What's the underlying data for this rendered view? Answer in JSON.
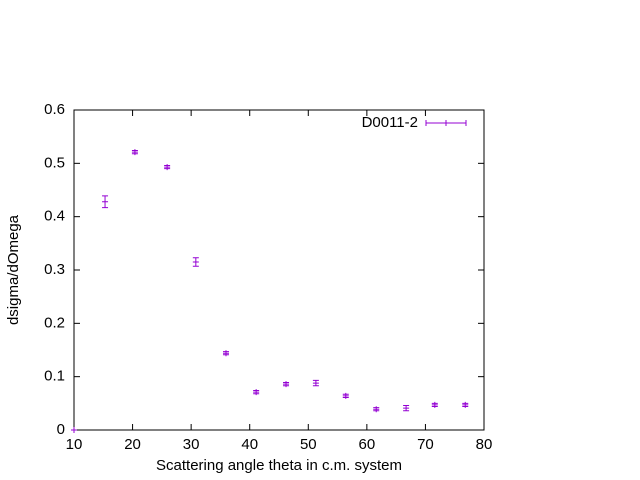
{
  "chart_data": {
    "type": "scatter",
    "xlabel": "Scattering angle theta in c.m. system",
    "ylabel": "dsigma/dOmega",
    "xlim": [
      10,
      80
    ],
    "ylim": [
      0,
      0.6
    ],
    "xticks": [
      10,
      20,
      30,
      40,
      50,
      60,
      70,
      80
    ],
    "yticks": [
      0,
      0.1,
      0.2,
      0.3,
      0.4,
      0.5,
      0.6
    ],
    "legend": "top-right",
    "series": [
      {
        "name": "D0011-2",
        "color": "#9400d3",
        "x": [
          10,
          15.3,
          20.4,
          25.9,
          30.8,
          35.95,
          41.1,
          46.2,
          51.3,
          56.4,
          61.6,
          66.7,
          71.6,
          76.8
        ],
        "values": [
          0,
          0.428,
          0.521,
          0.493,
          0.315,
          0.144,
          0.071,
          0.086,
          0.088,
          0.064,
          0.039,
          0.041,
          0.047,
          0.047
        ],
        "errors": [
          0,
          0.011,
          0.003,
          0.003,
          0.008,
          0.003,
          0.003,
          0.003,
          0.005,
          0.003,
          0.003,
          0.005,
          0.003,
          0.003
        ]
      }
    ]
  }
}
